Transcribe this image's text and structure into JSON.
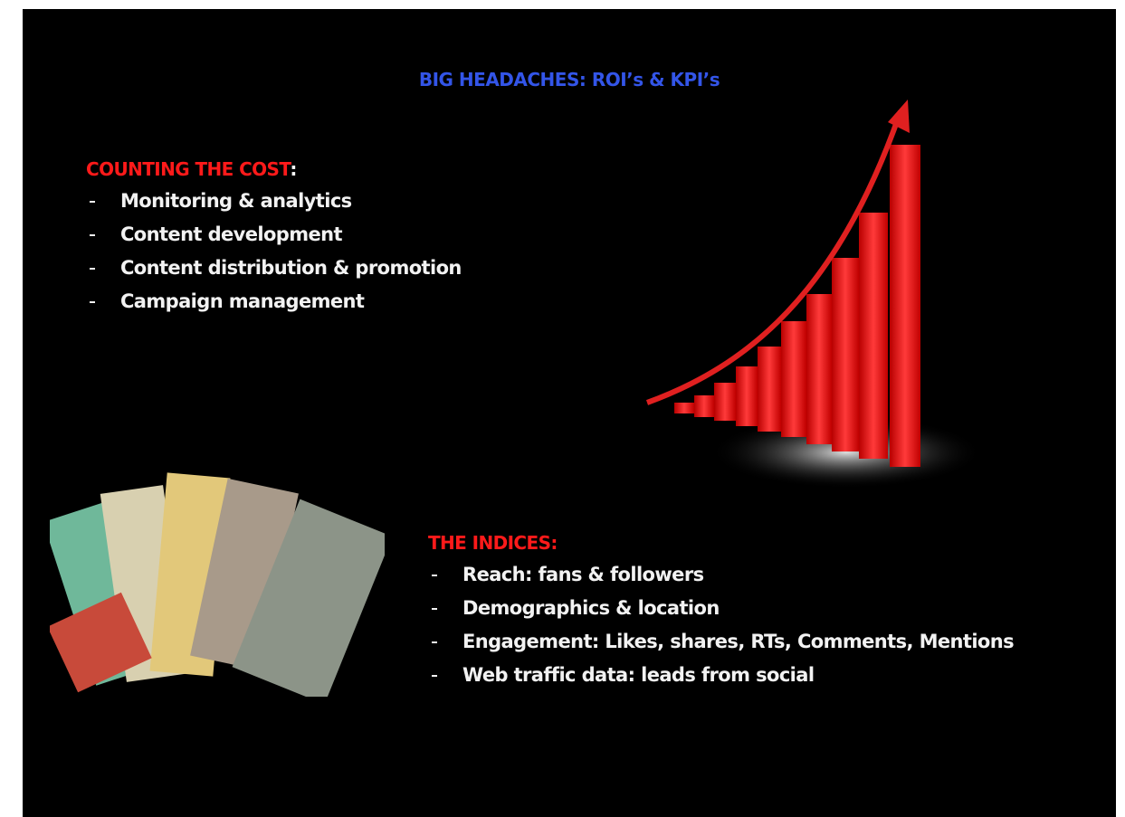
{
  "slide": {
    "title": "BIG HEADACHES: ROI’s & KPI’s",
    "cost": {
      "heading": "COUNTING THE COST",
      "heading_suffix": ":",
      "items": [
        "Monitoring & analytics",
        "Content development",
        "Content distribution & promotion",
        "Campaign management"
      ]
    },
    "indices": {
      "heading": "THE INDICES:",
      "items": [
        "Reach: fans & followers",
        "Demographics & location",
        "Engagement: Likes, shares, RTs, Comments, Mentions",
        "Web traffic data: leads from social"
      ]
    }
  }
}
